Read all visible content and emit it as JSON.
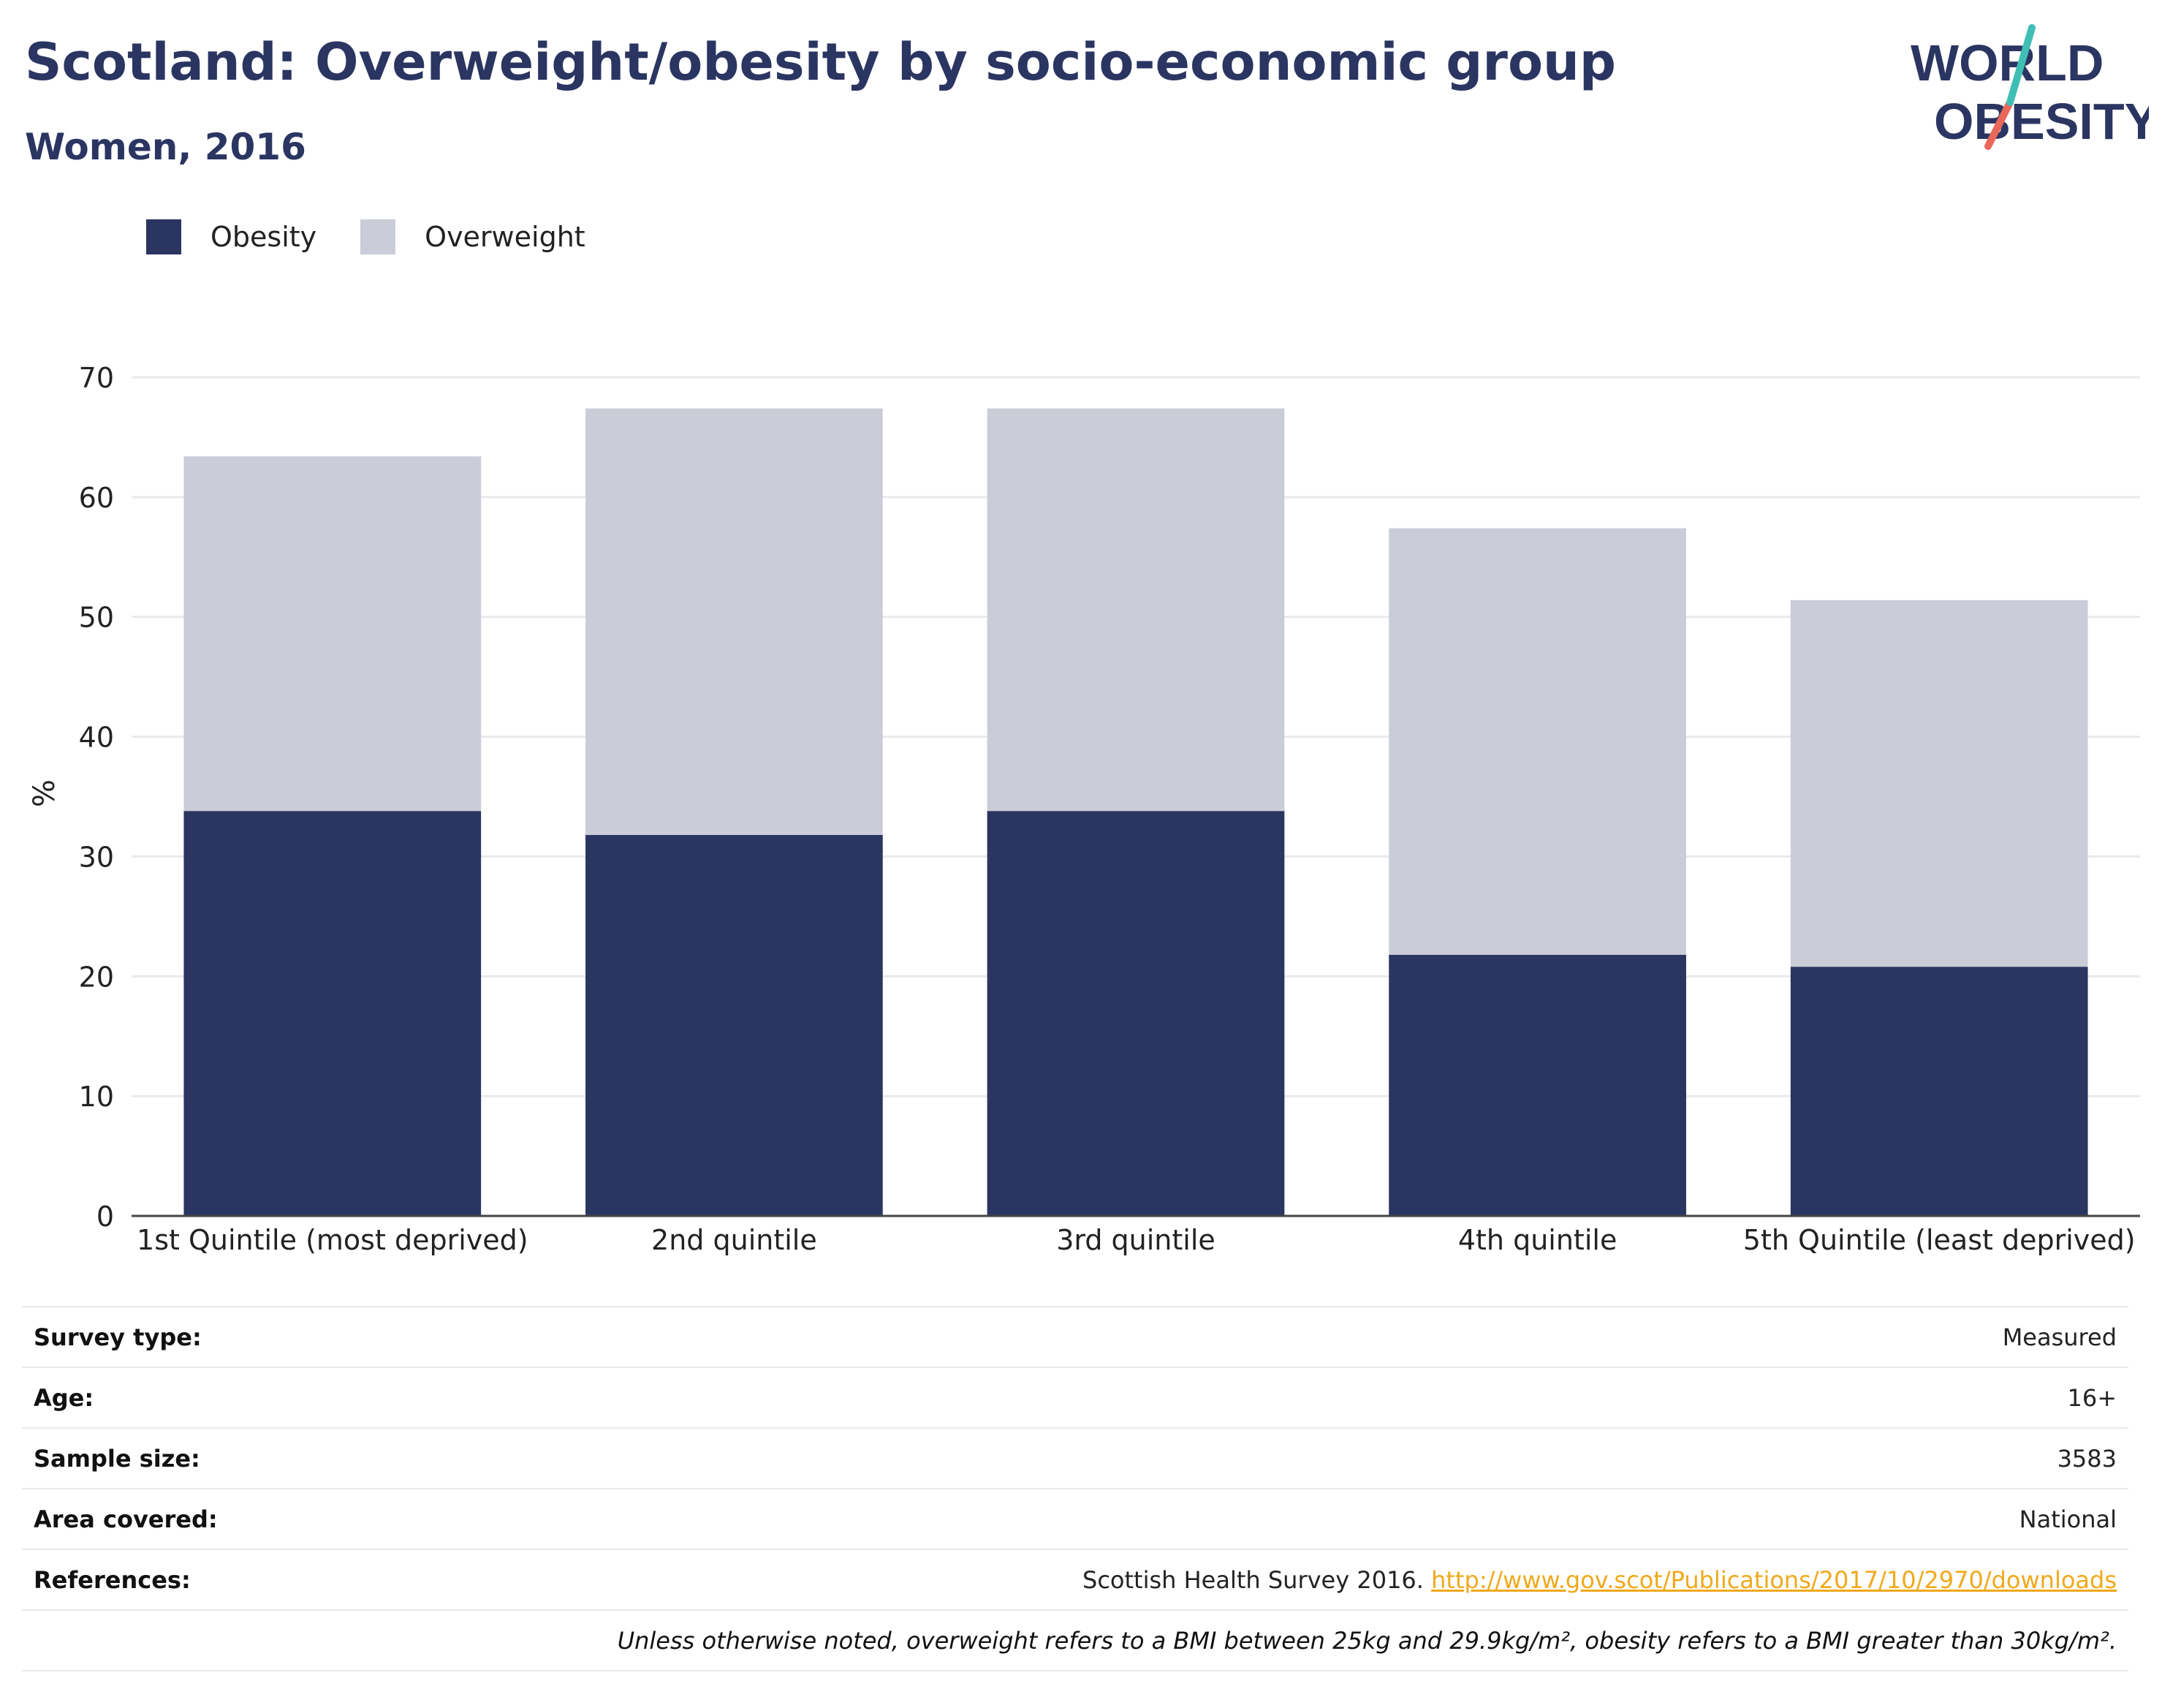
{
  "header": {
    "title": "Scotland: Overweight/obesity by socio-economic group",
    "subtitle": "Women, 2016"
  },
  "logo": {
    "line1": "WORLD",
    "line2": "OBESITY"
  },
  "colors": {
    "obesity": "#2b3562",
    "overweight": "#cacdd8",
    "accent_teal": "#3fbfb4",
    "accent_coral": "#e8685a",
    "link": "#f0a91c"
  },
  "chart_data": {
    "type": "bar",
    "stacked": true,
    "categories": [
      "1st Quintile (most deprived)",
      "2nd quintile",
      "3rd quintile",
      "4th quintile",
      "5th Quintile (least deprived)"
    ],
    "series": [
      {
        "name": "Obesity",
        "values": [
          33.8,
          31.8,
          33.8,
          21.8,
          20.8
        ]
      },
      {
        "name": "Overweight",
        "values": [
          29.6,
          35.6,
          33.6,
          35.6,
          30.6
        ]
      }
    ],
    "xlabel": "",
    "ylabel": "%",
    "ylim": [
      0,
      70
    ],
    "yticks": [
      0,
      10,
      20,
      30,
      40,
      50,
      60,
      70
    ],
    "grid": true,
    "legend": "top-left"
  },
  "info": {
    "survey_type": {
      "label": "Survey type:",
      "value": "Measured"
    },
    "age": {
      "label": "Age:",
      "value": "16+"
    },
    "sample_size": {
      "label": "Sample size:",
      "value": "3583"
    },
    "area": {
      "label": "Area covered:",
      "value": "National"
    },
    "references": {
      "label": "References:",
      "text": "Scottish Health Survey 2016. ",
      "link": "http://www.gov.scot/Publications/2017/10/2970/downloads"
    },
    "note": "Unless otherwise noted, overweight refers to a BMI between 25kg and 29.9kg/m², obesity refers to a BMI greater than 30kg/m²."
  }
}
